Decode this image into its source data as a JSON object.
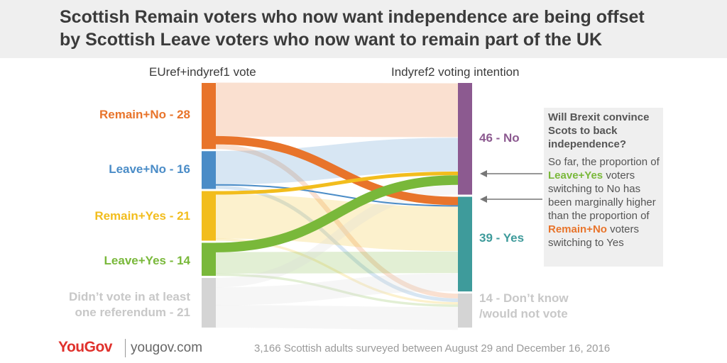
{
  "title_line1": "Scottish Remain voters who now want independence are being offset",
  "title_line2": "by Scottish Leave voters who now want to remain part of the UK",
  "left_header": "EUref+indyref1 vote",
  "right_header": "Indyref2 voting intention",
  "footer": {
    "logo": "YouGov",
    "site": "yougov.com",
    "note": "3,166 Scottish adults surveyed between August 29 and December 16, 2016"
  },
  "callout": {
    "question": "Will Brexit convince Scots to back independence?",
    "text_1": "So far, the proportion of",
    "highlight_1": "Leave+Yes",
    "text_2": "voters switching to No has been marginally higher than the proportion of",
    "highlight_2": "Remain+No",
    "text_3": "voters switching to Yes"
  },
  "chart_data": {
    "type": "sankey",
    "sources": [
      {
        "name": "Remain+No",
        "value": 28,
        "label": "Remain+No - 28",
        "color": "#e8742b"
      },
      {
        "name": "Leave+No",
        "value": 16,
        "label": "Leave+No - 16",
        "color": "#4a8cc7"
      },
      {
        "name": "Remain+Yes",
        "value": 21,
        "label": "Remain+Yes - 21",
        "color": "#f2bd1d"
      },
      {
        "name": "Leave+Yes",
        "value": 14,
        "label": "Leave+Yes - 14",
        "color": "#79b83a"
      },
      {
        "name": "Didn't vote",
        "value": 21,
        "label_line1": "Didn’t vote in at least",
        "label_line2": "one referendum - 21",
        "color": "#d4d4d4"
      }
    ],
    "targets": [
      {
        "name": "No",
        "value": 46,
        "label": "46 - No",
        "color": "#8c5a90"
      },
      {
        "name": "Yes",
        "value": 39,
        "label": "39 - Yes",
        "color": "#3e9b9b"
      },
      {
        "name": "Don't know",
        "value": 14,
        "label_line1": "14 - Don’t know",
        "label_line2": "/would not vote",
        "color": "#d4d4d4"
      }
    ],
    "links": [
      {
        "source": "Remain+No",
        "target": "No",
        "value": 22.5,
        "highlight": false
      },
      {
        "source": "Remain+No",
        "target": "Yes",
        "value": 3.5,
        "highlight": true
      },
      {
        "source": "Remain+No",
        "target": "Don't know",
        "value": 2,
        "highlight": false
      },
      {
        "source": "Leave+No",
        "target": "No",
        "value": 14,
        "highlight": false
      },
      {
        "source": "Leave+No",
        "target": "Yes",
        "value": 0.5,
        "highlight": true
      },
      {
        "source": "Leave+No",
        "target": "Don't know",
        "value": 1.5,
        "highlight": false
      },
      {
        "source": "Remain+Yes",
        "target": "No",
        "value": 1.5,
        "highlight": true
      },
      {
        "source": "Remain+Yes",
        "target": "Yes",
        "value": 18.5,
        "highlight": false
      },
      {
        "source": "Remain+Yes",
        "target": "Don't know",
        "value": 1,
        "highlight": false
      },
      {
        "source": "Leave+Yes",
        "target": "No",
        "value": 4,
        "highlight": true
      },
      {
        "source": "Leave+Yes",
        "target": "Yes",
        "value": 9,
        "highlight": false
      },
      {
        "source": "Leave+Yes",
        "target": "Don't know",
        "value": 1,
        "highlight": false
      },
      {
        "source": "Didn't vote",
        "target": "No",
        "value": 4,
        "highlight": false
      },
      {
        "source": "Didn't vote",
        "target": "Yes",
        "value": 7.5,
        "highlight": false
      },
      {
        "source": "Didn't vote",
        "target": "Don't know",
        "value": 9.5,
        "highlight": false
      }
    ]
  }
}
